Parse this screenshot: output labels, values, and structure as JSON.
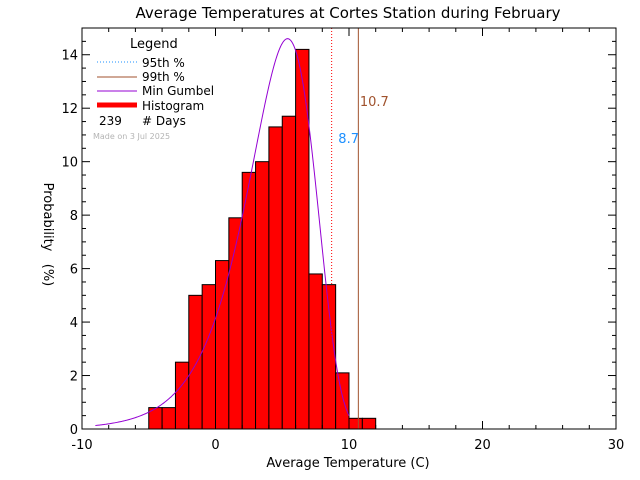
{
  "chart_data": {
    "type": "bar",
    "title": "Average Temperatures at Cortes Station during February",
    "xlabel": "Average Temperature (C)",
    "ylabel_top": "Probability",
    "ylabel_bottom": "(%)",
    "xlim": [
      -10,
      30
    ],
    "ylim": [
      0,
      15
    ],
    "x_ticks": [
      -10,
      0,
      10,
      20,
      30
    ],
    "y_ticks": [
      0,
      2,
      4,
      6,
      8,
      10,
      12,
      14
    ],
    "grid": false,
    "legend_position": "top-left",
    "legend": {
      "title": "Legend",
      "items": [
        "95th %",
        "99th %",
        "Min Gumbel",
        "Histogram"
      ],
      "days_count": "239",
      "days_label": "# Days"
    },
    "annotation": "Made on 3 Jul 2025",
    "histogram": {
      "bin_width": 1,
      "bin_starts": [
        -5,
        -4,
        -3,
        -2,
        -1,
        0,
        1,
        2,
        3,
        4,
        5,
        6,
        7,
        8,
        9,
        10,
        11
      ],
      "values": [
        0.8,
        0.8,
        2.5,
        5.0,
        5.4,
        6.3,
        7.9,
        9.6,
        10.0,
        11.3,
        11.7,
        14.2,
        5.8,
        5.4,
        2.1,
        0.4,
        0.4
      ]
    },
    "percentile_95": {
      "value": 8.7,
      "label": "8.7"
    },
    "percentile_99": {
      "value": 10.7,
      "label": "10.7"
    },
    "gumbel": {
      "mu": 5.4,
      "beta": 2.52,
      "peak": 14.6,
      "x_range": [
        -9,
        10
      ]
    },
    "colors": {
      "histogram": "#ff0000",
      "p95": "#1e90ff",
      "p99": "#a0522d",
      "gumbel": "#9400d3",
      "annotation": "#b4b4b4"
    }
  }
}
